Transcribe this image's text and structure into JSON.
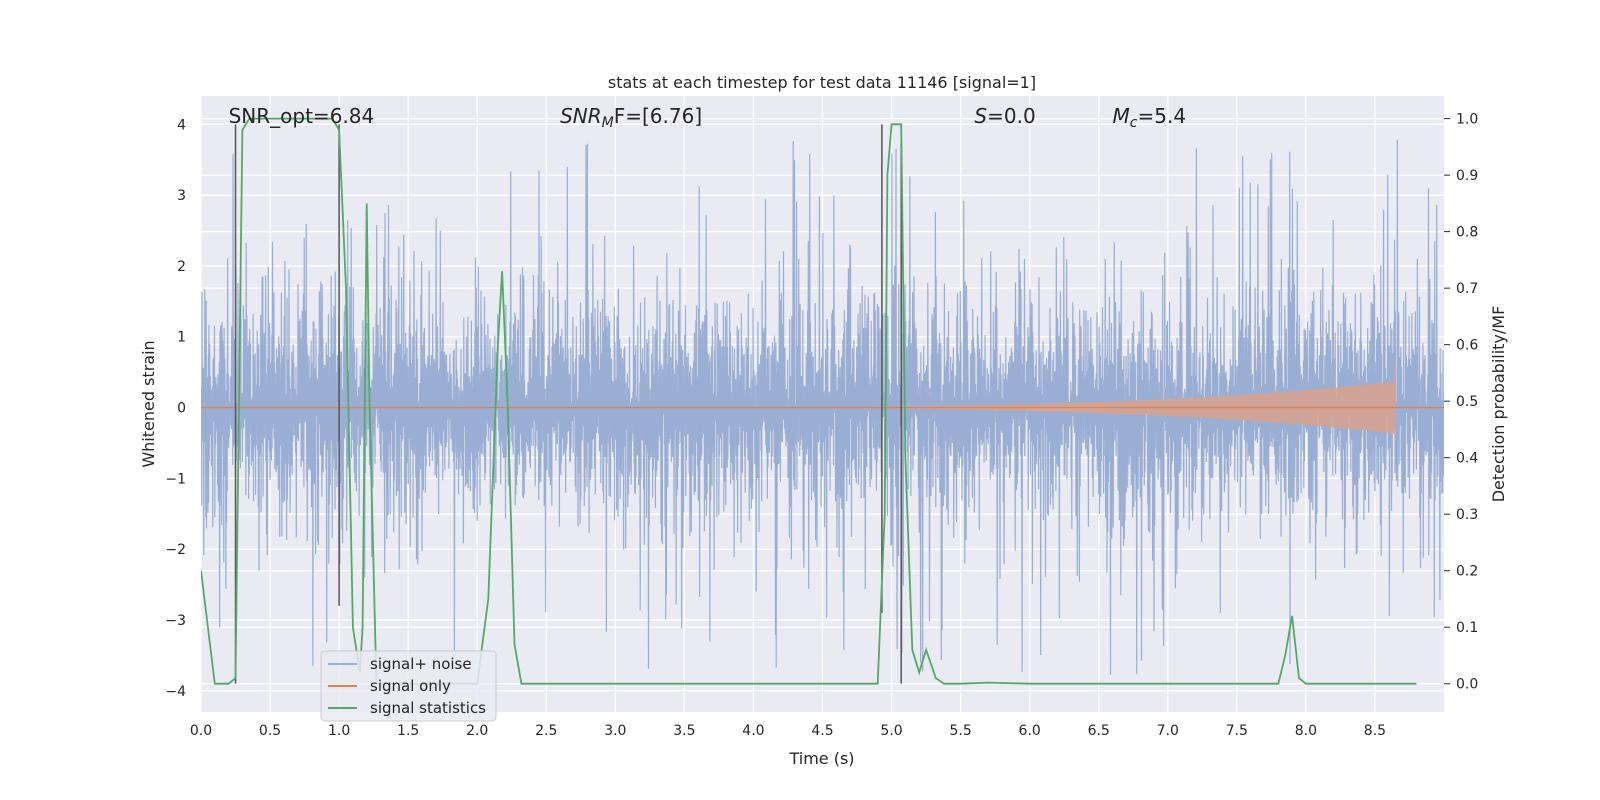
{
  "chart_data": {
    "type": "line",
    "title": "stats at each timestep for test data 11146 [signal=1]",
    "xlabel": "Time (s)",
    "ylabel": "Whitened strain",
    "ylabel_right": "Detection probability/MF",
    "xlim": [
      0.0,
      9.0
    ],
    "ylim": [
      -4.3,
      4.4
    ],
    "ylim_right": [
      -0.05,
      1.04
    ],
    "x_ticks": [
      0.0,
      0.5,
      1.0,
      1.5,
      2.0,
      2.5,
      3.0,
      3.5,
      4.0,
      4.5,
      5.0,
      5.5,
      6.0,
      6.5,
      7.0,
      7.5,
      8.0,
      8.5
    ],
    "x_tick_labels": [
      "0.0",
      "0.5",
      "1.0",
      "1.5",
      "2.0",
      "2.5",
      "3.0",
      "3.5",
      "4.0",
      "4.5",
      "5.0",
      "5.5",
      "6.0",
      "6.5",
      "7.0",
      "7.5",
      "8.0",
      "8.5"
    ],
    "y_ticks": [
      -4,
      -3,
      -2,
      -1,
      0,
      1,
      2,
      3,
      4
    ],
    "y_tick_labels": [
      "−4",
      "−3",
      "−2",
      "−1",
      "0",
      "1",
      "2",
      "3",
      "4"
    ],
    "y_ticks_right": [
      0.0,
      0.1,
      0.2,
      0.3,
      0.4,
      0.5,
      0.6,
      0.7,
      0.8,
      0.9,
      1.0
    ],
    "y_tick_labels_right": [
      "0.0",
      "0.1",
      "0.2",
      "0.3",
      "0.4",
      "0.5",
      "0.6",
      "0.7",
      "0.8",
      "0.9",
      "1.0"
    ],
    "grid": true,
    "annotations": {
      "snr_opt": {
        "main": "SNR_opt=6.84",
        "x": 0.2
      },
      "snr_mf": {
        "main": "SNR",
        "sub": "M",
        "rest": "F=[6.76]",
        "x": 2.6
      },
      "s_stat": {
        "main": "S",
        "rest": "=0.0",
        "x": 5.6
      },
      "m_c": {
        "main": "M",
        "sub": "c",
        "rest": "=5.4",
        "x": 6.6
      }
    },
    "vertical_markers": [
      {
        "x": 0.25,
        "y_top": 4.0,
        "y_bottom": -3.9
      },
      {
        "x": 1.0,
        "y_top": 4.0,
        "y_bottom": -2.8
      },
      {
        "x": 4.93,
        "y_top": 4.0,
        "y_bottom": -2.9
      },
      {
        "x": 5.07,
        "y_top": 4.0,
        "y_bottom": -3.9
      }
    ],
    "noise_series": {
      "name": "signal+ noise",
      "duration": 9.0,
      "typical_amplitude": 1.6,
      "peak_amplitude": 3.4
    },
    "signal_series": {
      "name": "signal only",
      "start": 3.5,
      "end": 8.65,
      "peak_amplitude": 0.75
    },
    "stat_series": {
      "name": "signal statistics",
      "x": [
        0.0,
        0.05,
        0.1,
        0.2,
        0.25,
        0.3,
        0.35,
        0.5,
        0.7,
        0.95,
        1.0,
        1.05,
        1.1,
        1.15,
        1.17,
        1.2,
        1.22,
        1.27,
        1.32,
        1.5,
        2.0,
        2.08,
        2.15,
        2.18,
        2.22,
        2.27,
        2.32,
        2.5,
        3.0,
        4.0,
        4.5,
        4.9,
        4.95,
        4.97,
        5.0,
        5.07,
        5.1,
        5.15,
        5.2,
        5.25,
        5.32,
        5.38,
        5.5,
        5.7,
        6.0,
        7.0,
        7.8,
        7.85,
        7.9,
        7.95,
        8.0,
        8.5,
        8.8
      ],
      "y": [
        0.2,
        0.1,
        0.0,
        0.0,
        0.01,
        0.98,
        1.0,
        1.0,
        1.0,
        1.0,
        0.98,
        0.7,
        0.1,
        0.02,
        0.1,
        0.85,
        0.5,
        0.0,
        0.0,
        0.0,
        0.0,
        0.15,
        0.6,
        0.73,
        0.5,
        0.07,
        0.0,
        0.0,
        0.0,
        0.0,
        0.0,
        0.0,
        0.3,
        0.9,
        0.99,
        0.99,
        0.4,
        0.06,
        0.02,
        0.06,
        0.01,
        0.0,
        0.0,
        0.002,
        0.0,
        0.0,
        0.0,
        0.05,
        0.12,
        0.01,
        0.0,
        0.0,
        0.0
      ]
    },
    "legend_placement": "lower-left",
    "colors": {
      "background": "#eaeaf2",
      "noise": "#9aaed4",
      "signal": "#dd8452",
      "signal_fill": "#d9a18d",
      "stats": "#55a868",
      "marker": "#555555"
    }
  }
}
